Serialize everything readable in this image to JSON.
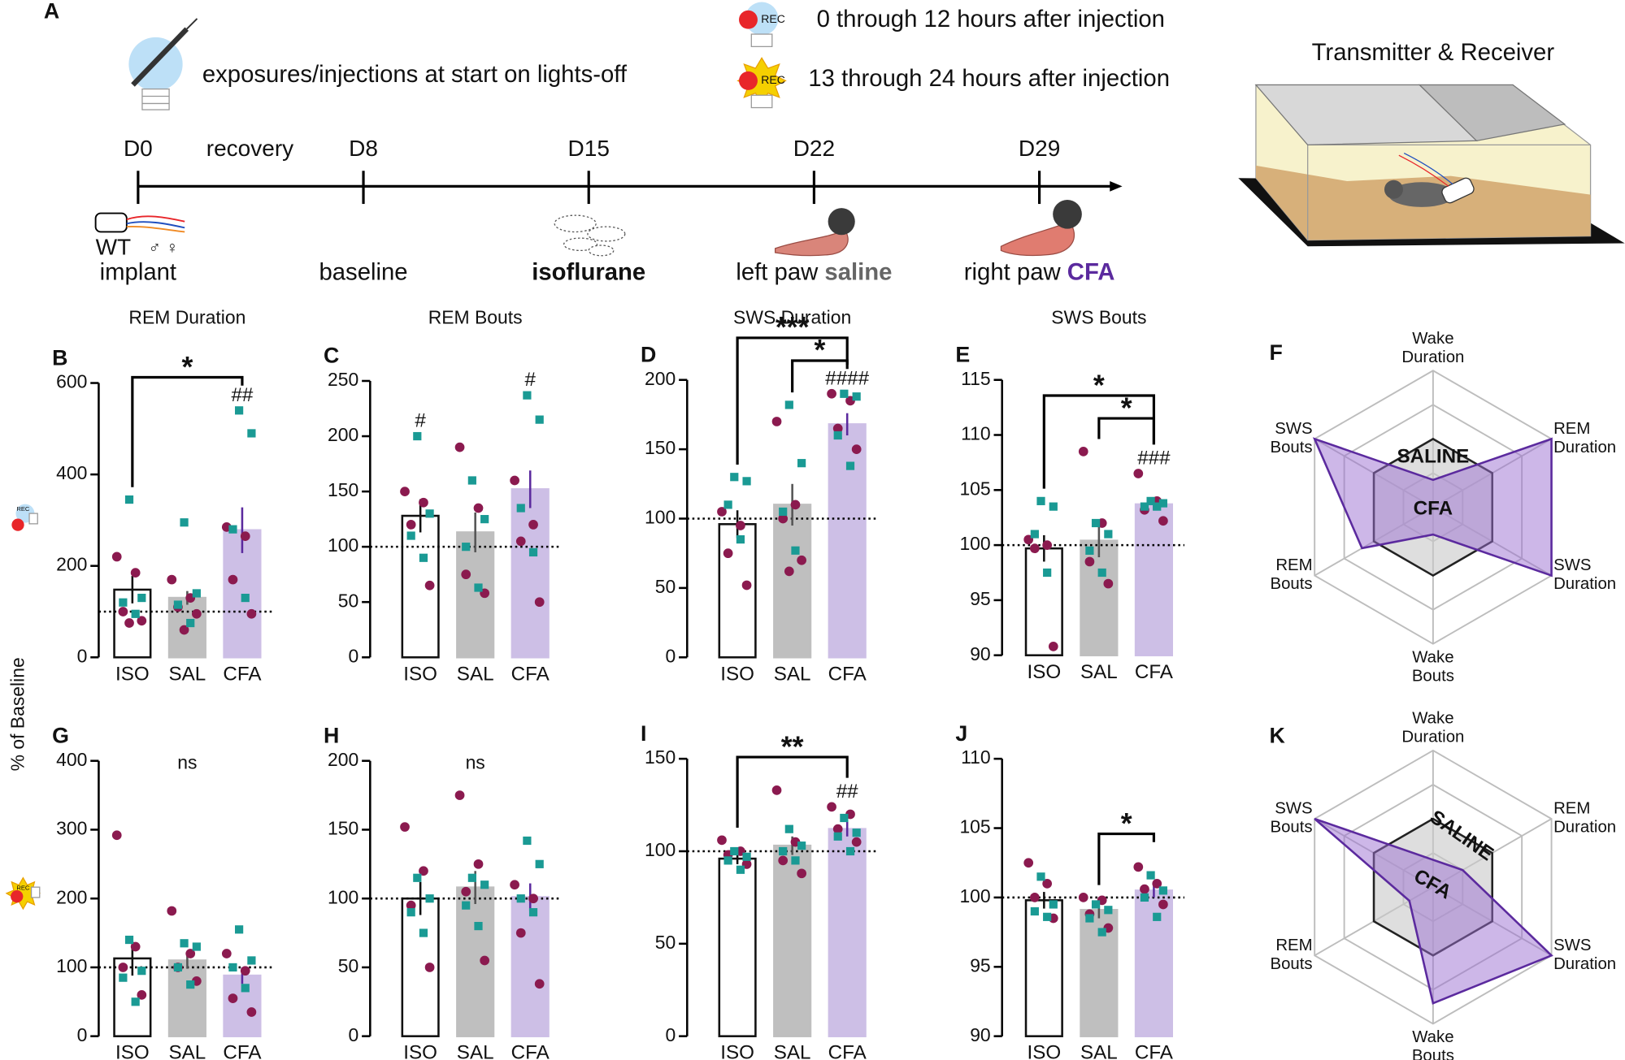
{
  "figure": {
    "label": "A",
    "header": {
      "injection_note": "exposures/injections at start on lights-off",
      "rec_first": "0 through 12 hours after injection",
      "rec_second": "13 through 24 hours after injection",
      "rec_icon": "REC"
    },
    "days": [
      "D0",
      "D8",
      "D15",
      "D22",
      "D29"
    ],
    "interval": "recovery",
    "strain": "WT",
    "sexes": [
      "♂",
      "♀"
    ],
    "sex_colors": [
      "#1a9a94",
      "#c0397a"
    ],
    "events": [
      {
        "text": "implant"
      },
      {
        "text": "baseline"
      },
      {
        "text": "isoflurane",
        "bold": true
      },
      {
        "text": "left paw ",
        "strong": "saline",
        "strong_color": "#666666"
      },
      {
        "text": "right paw ",
        "strong": "CFA",
        "strong_color": "#5b2a9e"
      }
    ],
    "cage_title": "Transmitter & Receiver",
    "shared_ylabel": "% of Baseline"
  },
  "chart_data": [
    {
      "type": "bar",
      "label": "B",
      "title": "REM Duration",
      "categories": [
        "ISO",
        "SAL",
        "CFA"
      ],
      "category_colors": [
        "#111111",
        "#777777",
        "#5b2a9e"
      ],
      "bar_fill": [
        "#ffffff",
        "#bfbfbf",
        "#cdbfe6"
      ],
      "bar_stroke": [
        "#111111",
        "#bfbfbf",
        "#cdbfe6"
      ],
      "error_colors": [
        "#111111",
        "#555555",
        "#5b2a9e"
      ],
      "values": [
        148,
        130,
        278
      ],
      "errors": [
        30,
        15,
        50
      ],
      "ylim": [
        0,
        600
      ],
      "yticks": [
        0,
        200,
        400,
        600
      ],
      "reference": 100,
      "point_colors": {
        "circle": "#8b1a4f",
        "square": "#1a9a94"
      },
      "points": [
        {
          "circle": [
            220,
            185,
            100,
            80,
            75
          ],
          "square": [
            345,
            130,
            120,
            95
          ]
        },
        {
          "circle": [
            170,
            130,
            110,
            95,
            60
          ],
          "square": [
            295,
            140,
            115,
            75
          ]
        },
        {
          "circle": [
            285,
            265,
            170,
            95
          ],
          "square": [
            540,
            490,
            280,
            130
          ]
        }
      ],
      "hash_labels": [
        null,
        null,
        "##"
      ],
      "comparisons": [
        {
          "between": [
            "ISO",
            "CFA"
          ],
          "label": "*"
        }
      ]
    },
    {
      "type": "bar",
      "label": "C",
      "title": "REM Bouts",
      "categories": [
        "ISO",
        "SAL",
        "CFA"
      ],
      "category_colors": [
        "#111111",
        "#777777",
        "#5b2a9e"
      ],
      "bar_fill": [
        "#ffffff",
        "#bfbfbf",
        "#cdbfe6"
      ],
      "bar_stroke": [
        "#111111",
        "#bfbfbf",
        "#cdbfe6"
      ],
      "error_colors": [
        "#111111",
        "#555555",
        "#5b2a9e"
      ],
      "values": [
        128,
        113,
        152
      ],
      "errors": [
        15,
        18,
        17
      ],
      "ylim": [
        0,
        250
      ],
      "yticks": [
        0,
        50,
        100,
        150,
        200,
        250
      ],
      "reference": 100,
      "point_colors": {
        "circle": "#8b1a4f",
        "square": "#1a9a94"
      },
      "points": [
        {
          "circle": [
            150,
            140,
            120,
            65
          ],
          "square": [
            200,
            130,
            110,
            90
          ]
        },
        {
          "circle": [
            190,
            135,
            75,
            58
          ],
          "square": [
            160,
            125,
            100,
            63
          ]
        },
        {
          "circle": [
            160,
            120,
            105,
            50
          ],
          "square": [
            237,
            215,
            135,
            95
          ]
        }
      ],
      "hash_labels": [
        "#",
        null,
        "#"
      ],
      "comparisons": []
    },
    {
      "type": "bar",
      "label": "D",
      "title": "SWS Duration",
      "categories": [
        "ISO",
        "SAL",
        "CFA"
      ],
      "category_colors": [
        "#111111",
        "#777777",
        "#5b2a9e"
      ],
      "bar_fill": [
        "#ffffff",
        "#bfbfbf",
        "#cdbfe6"
      ],
      "bar_stroke": [
        "#111111",
        "#bfbfbf",
        "#cdbfe6"
      ],
      "error_colors": [
        "#111111",
        "#555555",
        "#5b2a9e"
      ],
      "values": [
        96,
        110,
        168
      ],
      "errors": [
        10,
        15,
        8
      ],
      "ylim": [
        0,
        200
      ],
      "yticks": [
        0,
        50,
        100,
        150,
        200
      ],
      "reference": 100,
      "point_colors": {
        "circle": "#8b1a4f",
        "square": "#1a9a94"
      },
      "points": [
        {
          "circle": [
            105,
            95,
            75,
            52
          ],
          "square": [
            130,
            127,
            110,
            85
          ]
        },
        {
          "circle": [
            170,
            110,
            100,
            70,
            62
          ],
          "square": [
            182,
            140,
            105,
            77
          ]
        },
        {
          "circle": [
            190,
            185,
            165,
            150
          ],
          "square": [
            190,
            188,
            160,
            138
          ]
        }
      ],
      "hash_labels": [
        null,
        null,
        "####"
      ],
      "comparisons": [
        {
          "between": [
            "SAL",
            "CFA"
          ],
          "label": "*"
        },
        {
          "between": [
            "ISO",
            "CFA"
          ],
          "label": "***"
        }
      ]
    },
    {
      "type": "bar",
      "label": "E",
      "title": "SWS Bouts",
      "categories": [
        "ISO",
        "SAL",
        "CFA"
      ],
      "category_colors": [
        "#111111",
        "#777777",
        "#5b2a9e"
      ],
      "bar_fill": [
        "#ffffff",
        "#bfbfbf",
        "#cdbfe6"
      ],
      "bar_stroke": [
        "#111111",
        "#bfbfbf",
        "#cdbfe6"
      ],
      "error_colors": [
        "#111111",
        "#555555",
        "#5b2a9e"
      ],
      "values": [
        99.7,
        100.4,
        103.7
      ],
      "errors": [
        1.2,
        1.5,
        0.5
      ],
      "ylim": [
        90,
        115
      ],
      "yticks": [
        90,
        95,
        100,
        105,
        110,
        115
      ],
      "reference": 100,
      "point_colors": {
        "circle": "#8b1a4f",
        "square": "#1a9a94"
      },
      "points": [
        {
          "circle": [
            100.5,
            100,
            99.7,
            90.8
          ],
          "square": [
            104,
            103.5,
            101,
            97.5
          ]
        },
        {
          "circle": [
            108.5,
            102,
            98.5,
            96.5
          ],
          "square": [
            102,
            101,
            99.5,
            97.5
          ]
        },
        {
          "circle": [
            106.5,
            104,
            103.2,
            102.2
          ],
          "square": [
            104,
            103.8,
            103.5,
            103.5
          ]
        }
      ],
      "hash_labels": [
        null,
        null,
        "###"
      ],
      "comparisons": [
        {
          "between": [
            "SAL",
            "CFA"
          ],
          "label": "*"
        },
        {
          "between": [
            "ISO",
            "CFA"
          ],
          "label": "*"
        }
      ]
    },
    {
      "type": "bar",
      "label": "G",
      "categories": [
        "ISO",
        "SAL",
        "CFA"
      ],
      "category_colors": [
        "#111111",
        "#777777",
        "#5b2a9e"
      ],
      "bar_fill": [
        "#ffffff",
        "#bfbfbf",
        "#cdbfe6"
      ],
      "bar_stroke": [
        "#111111",
        "#bfbfbf",
        "#cdbfe6"
      ],
      "error_colors": [
        "#111111",
        "#555555",
        "#5b2a9e"
      ],
      "values": [
        113,
        110,
        88
      ],
      "errors": [
        25,
        12,
        12
      ],
      "ylim": [
        0,
        400
      ],
      "yticks": [
        0,
        100,
        200,
        300,
        400
      ],
      "reference": 100,
      "point_colors": {
        "circle": "#8b1a4f",
        "square": "#1a9a94"
      },
      "points": [
        {
          "circle": [
            292,
            130,
            100,
            60
          ],
          "square": [
            140,
            95,
            85,
            50
          ]
        },
        {
          "circle": [
            182,
            120,
            100,
            80
          ],
          "square": [
            135,
            130,
            100,
            75
          ]
        },
        {
          "circle": [
            120,
            95,
            55,
            35
          ],
          "square": [
            155,
            110,
            100,
            70
          ]
        }
      ],
      "hash_labels": [
        null,
        null,
        null
      ],
      "annotation": "ns",
      "comparisons": []
    },
    {
      "type": "bar",
      "label": "H",
      "categories": [
        "ISO",
        "SAL",
        "CFA"
      ],
      "category_colors": [
        "#111111",
        "#777777",
        "#5b2a9e"
      ],
      "bar_fill": [
        "#ffffff",
        "#bfbfbf",
        "#cdbfe6"
      ],
      "bar_stroke": [
        "#111111",
        "#bfbfbf",
        "#cdbfe6"
      ],
      "error_colors": [
        "#111111",
        "#555555",
        "#5b2a9e"
      ],
      "values": [
        100,
        108,
        101
      ],
      "errors": [
        12,
        12,
        10
      ],
      "ylim": [
        0,
        200
      ],
      "yticks": [
        0,
        50,
        100,
        150,
        200
      ],
      "reference": 100,
      "point_colors": {
        "circle": "#8b1a4f",
        "square": "#1a9a94"
      },
      "points": [
        {
          "circle": [
            152,
            120,
            95,
            50
          ],
          "square": [
            115,
            100,
            90,
            75
          ]
        },
        {
          "circle": [
            175,
            125,
            105,
            55
          ],
          "square": [
            115,
            110,
            95,
            80
          ]
        },
        {
          "circle": [
            110,
            100,
            75,
            38
          ],
          "square": [
            142,
            125,
            100,
            90
          ]
        }
      ],
      "hash_labels": [
        null,
        null,
        null
      ],
      "annotation": "ns",
      "comparisons": []
    },
    {
      "type": "bar",
      "label": "I",
      "categories": [
        "ISO",
        "SAL",
        "CFA"
      ],
      "category_colors": [
        "#111111",
        "#777777",
        "#5b2a9e"
      ],
      "bar_fill": [
        "#ffffff",
        "#bfbfbf",
        "#cdbfe6"
      ],
      "bar_stroke": [
        "#111111",
        "#bfbfbf",
        "#cdbfe6"
      ],
      "error_colors": [
        "#111111",
        "#555555",
        "#5b2a9e"
      ],
      "values": [
        96,
        103,
        112
      ],
      "errors": [
        3,
        5,
        4
      ],
      "ylim": [
        0,
        150
      ],
      "yticks": [
        0,
        50,
        100,
        150
      ],
      "reference": 100,
      "point_colors": {
        "circle": "#8b1a4f",
        "square": "#1a9a94"
      },
      "points": [
        {
          "circle": [
            106,
            100,
            98,
            93
          ],
          "square": [
            100,
            97,
            95,
            90
          ]
        },
        {
          "circle": [
            133,
            105,
            95,
            88
          ],
          "square": [
            112,
            103,
            100,
            95
          ]
        },
        {
          "circle": [
            124,
            120,
            112,
            105
          ],
          "square": [
            118,
            110,
            108,
            100
          ]
        }
      ],
      "hash_labels": [
        null,
        null,
        "##"
      ],
      "comparisons": [
        {
          "between": [
            "ISO",
            "CFA"
          ],
          "label": "**"
        }
      ]
    },
    {
      "type": "bar",
      "label": "J",
      "categories": [
        "ISO",
        "SAL",
        "CFA"
      ],
      "category_colors": [
        "#111111",
        "#777777",
        "#5b2a9e"
      ],
      "bar_fill": [
        "#ffffff",
        "#bfbfbf",
        "#cdbfe6"
      ],
      "bar_stroke": [
        "#111111",
        "#bfbfbf",
        "#cdbfe6"
      ],
      "error_colors": [
        "#111111",
        "#555555",
        "#5b2a9e"
      ],
      "values": [
        99.8,
        99.1,
        100.5
      ],
      "errors": [
        0.6,
        0.6,
        0.5
      ],
      "ylim": [
        90,
        110
      ],
      "yticks": [
        90,
        95,
        100,
        105,
        110
      ],
      "reference": 100,
      "point_colors": {
        "circle": "#8b1a4f",
        "square": "#1a9a94"
      },
      "points": [
        {
          "circle": [
            102.5,
            101,
            100,
            98.5
          ],
          "square": [
            101.5,
            99.5,
            99,
            98.6
          ]
        },
        {
          "circle": [
            100,
            99.8,
            98.8,
            97.8
          ],
          "square": [
            99.5,
            99.1,
            98.5,
            97.5
          ]
        },
        {
          "circle": [
            102.2,
            101,
            100.6,
            99.5
          ],
          "square": [
            101.6,
            100.5,
            100,
            98.6
          ]
        }
      ],
      "hash_labels": [
        null,
        null,
        null
      ],
      "comparisons": [
        {
          "between": [
            "SAL",
            "CFA"
          ],
          "label": "*"
        }
      ]
    },
    {
      "type": "radar",
      "label": "F",
      "axes": [
        [
          "Wake",
          "Duration"
        ],
        [
          "REM",
          "Duration"
        ],
        [
          "SWS",
          "Duration"
        ],
        [
          "Wake",
          "Bouts"
        ],
        [
          "REM",
          "Bouts"
        ],
        [
          "SWS",
          "Bouts"
        ]
      ],
      "rlim": [
        0,
        200
      ],
      "rticks": [
        50,
        100,
        150,
        200
      ],
      "series": [
        {
          "name": "SALINE",
          "color": "#222222",
          "fill": "#c8c8c8",
          "label_color": "#4a4a4a",
          "values": [
            100,
            100,
            100,
            100,
            100,
            100
          ]
        },
        {
          "name": "CFA",
          "color": "#5b2a9e",
          "fill": "#9b6fd1",
          "label_color": "#5b2a9e",
          "values": [
            40,
            200,
            200,
            40,
            120,
            200
          ]
        }
      ]
    },
    {
      "type": "radar",
      "label": "K",
      "axes": [
        [
          "Wake",
          "Duration"
        ],
        [
          "REM",
          "Duration"
        ],
        [
          "SWS",
          "Duration"
        ],
        [
          "Wake",
          "Bouts"
        ],
        [
          "REM",
          "Bouts"
        ],
        [
          "SWS",
          "Bouts"
        ]
      ],
      "rlim": [
        0,
        200
      ],
      "rticks": [
        50,
        100,
        150,
        200
      ],
      "series": [
        {
          "name": "SALINE",
          "color": "#222222",
          "fill": "#c8c8c8",
          "label_color": "#4a4a4a",
          "values": [
            100,
            100,
            100,
            100,
            100,
            100
          ]
        },
        {
          "name": "CFA",
          "color": "#5b2a9e",
          "fill": "#9b6fd1",
          "label_color": "#5b2a9e",
          "values": [
            40,
            50,
            200,
            170,
            40,
            200
          ]
        }
      ]
    }
  ]
}
